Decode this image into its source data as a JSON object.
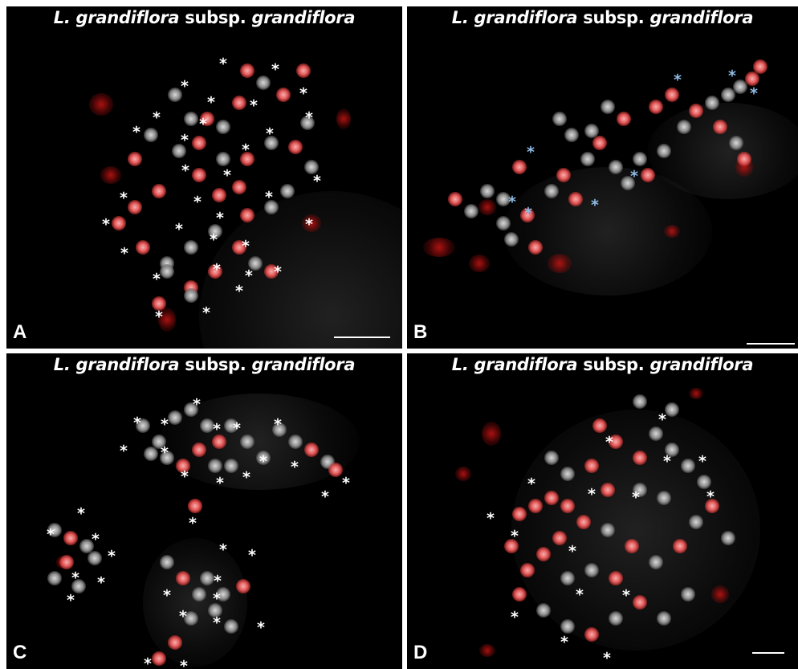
{
  "panels": [
    {
      "id": "a",
      "letter": "A",
      "title_part1": "L. grandiflora",
      "title_part2": " subsp. ",
      "title_part3": "grandiflora"
    },
    {
      "id": "b",
      "letter": "B",
      "title_part1": "L. grandiflora",
      "title_part2": " subsp. ",
      "title_part3": "grandiflora"
    },
    {
      "id": "c",
      "letter": "C",
      "title_part1": "L. grandiflora",
      "title_part2": " subsp. ",
      "title_part3": "grandiflora"
    },
    {
      "id": "d",
      "letter": "D",
      "title_part1": "L. grandiflora",
      "title_part2": " subsp. ",
      "title_part3": "grandiflora"
    }
  ],
  "marker_symbol": "*",
  "colors": {
    "background": "#000000",
    "signal": "#e55a5a",
    "chromatin": "#8a8a8a",
    "marker_white": "#ffffff",
    "marker_blue": "#8fbde6"
  }
}
